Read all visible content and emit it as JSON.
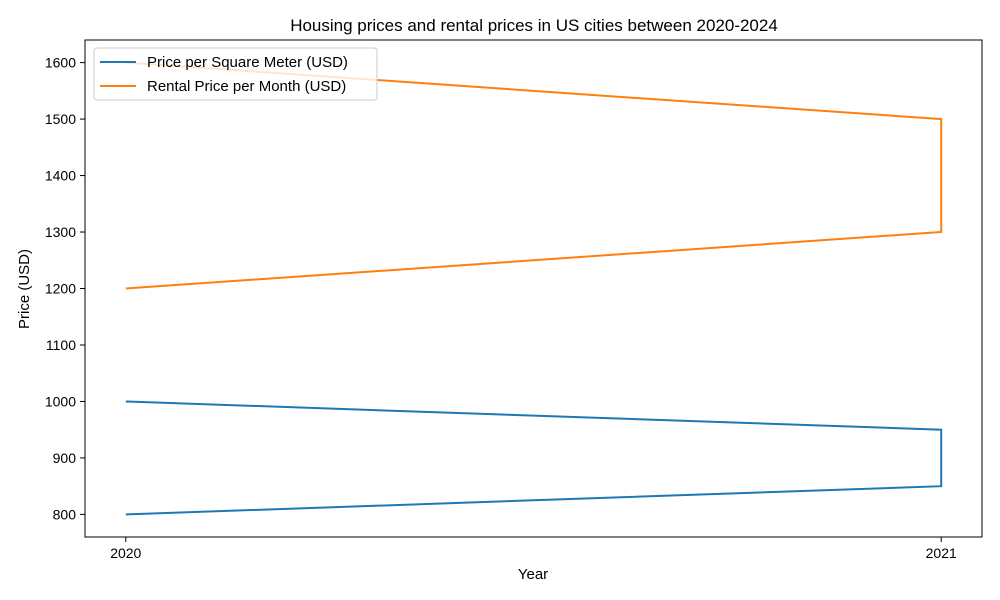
{
  "chart_data": {
    "type": "line",
    "title": "Housing prices and rental prices in US cities between 2020-2024",
    "xlabel": "Year",
    "ylabel": "Price (USD)",
    "x_ticks": [
      "2020",
      "2021"
    ],
    "y_ticks": [
      "800",
      "900",
      "1000",
      "1100",
      "1200",
      "1300",
      "1400",
      "1500",
      "1600"
    ],
    "xlim": [
      2019.95,
      2021.05
    ],
    "ylim": [
      760,
      1640
    ],
    "grid": false,
    "legend_position": "top-left",
    "series": [
      {
        "name": "Price per Square Meter (USD)",
        "color": "#1f77b4",
        "x": [
          2020,
          2021,
          2021,
          2020
        ],
        "y": [
          800,
          850,
          950,
          1000
        ]
      },
      {
        "name": "Rental Price per Month (USD)",
        "color": "#ff7f0e",
        "x": [
          2020,
          2021,
          2021,
          2020
        ],
        "y": [
          1200,
          1300,
          1500,
          1600
        ]
      }
    ]
  }
}
